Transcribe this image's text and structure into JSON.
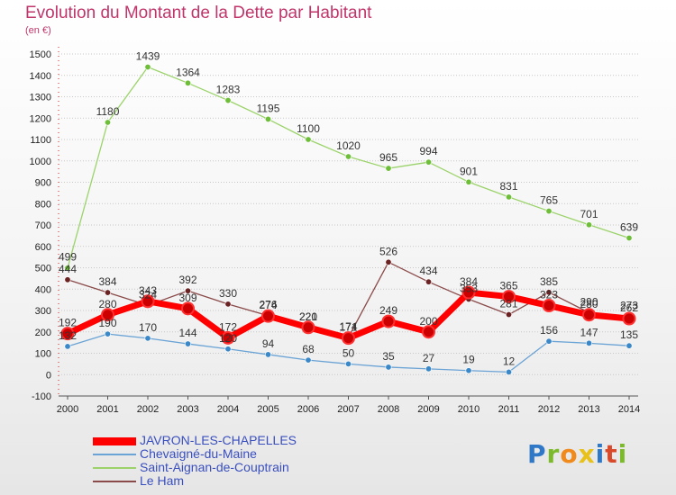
{
  "title": "Evolution du Montant de la Dette par Habitant",
  "subtitle": "(en €)",
  "logo": {
    "text": "Proxiti",
    "letter_colors": [
      "#2f78c7",
      "#7cba2c",
      "#f08a1c",
      "#e8c21a",
      "#2f78c7",
      "#d94a2a",
      "#7cba2c"
    ]
  },
  "chart_data": {
    "type": "line",
    "title": "Evolution du Montant de la Dette par Habitant",
    "ylabel": "(en €)",
    "xlabel": "",
    "x": [
      "2000",
      "2001",
      "2002",
      "2003",
      "2004",
      "2005",
      "2006",
      "2007",
      "2008",
      "2009",
      "2010",
      "2011",
      "2012",
      "2013",
      "2014"
    ],
    "ylim": [
      -100,
      1500
    ],
    "yticks": [
      "-100",
      "0",
      "100",
      "200",
      "300",
      "400",
      "500",
      "600",
      "700",
      "800",
      "900",
      "1000",
      "1100",
      "1200",
      "1300",
      "1400",
      "1500"
    ],
    "grid": "horizontal",
    "legend_position": "bottom-left",
    "series": [
      {
        "name": "JAVRON-LES-CHAPELLES",
        "color": "#ff0000",
        "point_color": "#cc0000",
        "width": 7,
        "values": [
          192,
          280,
          343,
          309,
          172,
          274,
          221,
          171,
          249,
          200,
          384,
          365,
          323,
          280,
          262
        ],
        "labels": [
          "192",
          "280",
          "343",
          "309",
          "172",
          "274",
          "221",
          "171",
          "249",
          "200",
          "384",
          "365",
          "323",
          "280",
          "262"
        ]
      },
      {
        "name": "Chevaigné-du-Maine",
        "color": "#6aa3d5",
        "point_color": "#3a88c8",
        "width": 1.3,
        "values": [
          132,
          190,
          170,
          144,
          120,
          94,
          68,
          50,
          35,
          27,
          19,
          12,
          156,
          147,
          135
        ],
        "labels": [
          "132",
          "190",
          "170",
          "144",
          "120",
          "94",
          "68",
          "50",
          "35",
          "27",
          "19",
          "12",
          "156",
          "147",
          "135"
        ]
      },
      {
        "name": "Saint-Aignan-de-Couptrain",
        "color": "#9bd36a",
        "point_color": "#6fbe3a",
        "width": 1.3,
        "values": [
          499,
          1180,
          1439,
          1364,
          1283,
          1195,
          1100,
          1020,
          965,
          994,
          901,
          831,
          765,
          701,
          639
        ],
        "labels": [
          "499",
          "1180",
          "1439",
          "1364",
          "1283",
          "1195",
          "1100",
          "1020",
          "965",
          "994",
          "901",
          "831",
          "765",
          "701",
          "639"
        ]
      },
      {
        "name": "Le Ham",
        "color": "#8b4a4a",
        "point_color": "#6b2222",
        "width": 1.3,
        "values": [
          444,
          384,
          324,
          392,
          330,
          276,
          220,
          174,
          526,
          434,
          353,
          281,
          385,
          290,
          273
        ],
        "labels": [
          "444",
          "384",
          "324",
          "392",
          "330",
          "276",
          "220",
          "174",
          "526",
          "434",
          "353",
          "281",
          "385",
          "290",
          "273"
        ]
      }
    ]
  }
}
